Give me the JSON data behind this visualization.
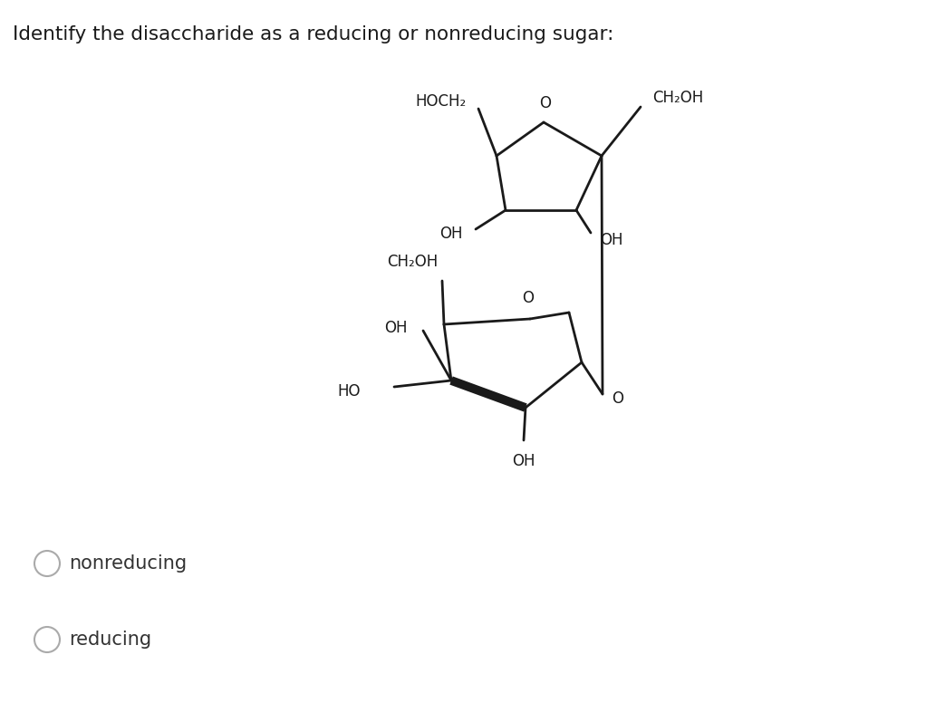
{
  "title": "Identify the disaccharide as a reducing or nonreducing sugar:",
  "background_color": "#ffffff",
  "text_color": "#1a1a1a",
  "line_color": "#1a1a1a",
  "option1": "nonreducing",
  "option2": "reducing",
  "font_size_title": 15.5,
  "font_size_chem": 12,
  "font_size_options": 15
}
